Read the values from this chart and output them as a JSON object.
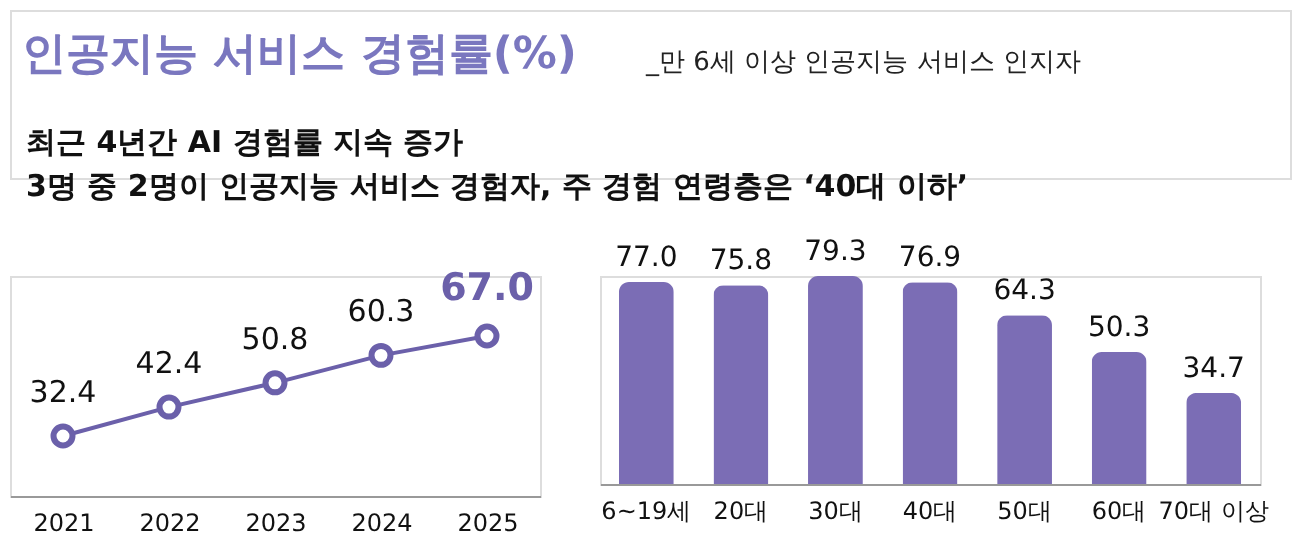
{
  "chart_data": [
    {
      "type": "other",
      "title": "인공지능 서비스 경험률(%)",
      "subtitle": "_만 6세 이상 인공지능 서비스 인지자",
      "annotations": [
        "최근 4년간 AI 경험률 지속 증가",
        "3명 중 2명이 인공지능 서비스 경험자, 주 경험 연령층은 ‘40대 이하’"
      ]
    },
    {
      "type": "line",
      "categories": [
        "2021",
        "2022",
        "2023",
        "2024",
        "2025"
      ],
      "series": [
        {
          "color": "#6b60aa",
          "values": [
            32.4,
            42.4,
            50.8,
            60.3,
            67.0
          ],
          "value_labels": [
            "32.4",
            "42.4",
            "50.8",
            "60.3",
            "67.0"
          ]
        }
      ],
      "tick_labels": "x",
      "marker": "circle",
      "line_style": "solid",
      "grid": false
    },
    {
      "type": "bar",
      "categories": [
        "6~19세",
        "20대",
        "30대",
        "40대",
        "50대",
        "60대",
        "70대 이상"
      ],
      "values": [
        77.0,
        75.8,
        79.3,
        76.9,
        64.3,
        50.3,
        34.7
      ],
      "value_labels": [
        "77.0",
        "75.8",
        "79.3",
        "76.9",
        "64.3",
        "50.3",
        "34.7"
      ],
      "color": "#7b6db5",
      "tick_labels": "x",
      "grid": false
    }
  ]
}
